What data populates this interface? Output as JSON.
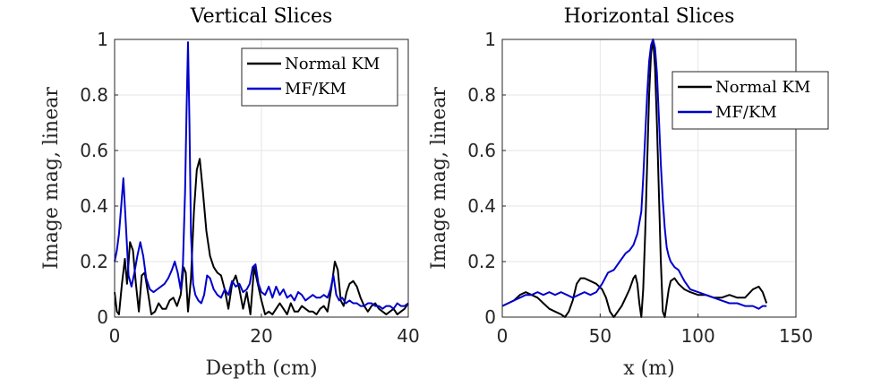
{
  "chart_data": [
    {
      "type": "line",
      "title": "Vertical Slices",
      "xlabel": "Depth (cm)",
      "ylabel": "Image mag, linear",
      "xlim": [
        0,
        40
      ],
      "ylim": [
        0,
        1
      ],
      "xticks": [
        0,
        20,
        40
      ],
      "yticks": [
        0,
        0.2,
        0.4,
        0.6,
        0.8,
        1
      ],
      "ytick_labels": [
        "0",
        "0.2",
        "0.4",
        "0.6",
        "0.8",
        "1"
      ],
      "grid": true,
      "legend_position": "top-right",
      "series": [
        {
          "name": "Normal KM",
          "color": "#000000",
          "x": [
            0,
            0.3,
            0.6,
            1,
            1.4,
            1.7,
            2.1,
            2.5,
            2.9,
            3.3,
            3.7,
            4.1,
            4.6,
            5,
            5.5,
            6,
            6.5,
            7,
            7.5,
            8,
            8.5,
            9,
            9.4,
            9.7,
            10,
            10.4,
            10.8,
            11.2,
            11.6,
            12,
            12.5,
            13,
            13.5,
            14,
            14.5,
            15,
            15.5,
            16,
            16.5,
            17,
            17.5,
            18,
            18.5,
            19,
            19.5,
            20,
            20.5,
            21,
            21.5,
            22,
            22.5,
            23,
            23.5,
            24,
            24.5,
            25,
            25.5,
            26,
            26.5,
            27,
            27.5,
            28,
            28.5,
            29,
            29.5,
            30,
            30.4,
            30.8,
            31.2,
            31.6,
            32,
            32.5,
            33,
            33.5,
            34,
            34.5,
            35,
            35.5,
            36,
            36.5,
            37,
            37.5,
            38,
            38.5,
            39,
            39.5,
            40
          ],
          "y": [
            0.09,
            0.02,
            0.01,
            0.12,
            0.21,
            0.12,
            0.27,
            0.24,
            0.12,
            0.02,
            0.15,
            0.16,
            0.08,
            0.01,
            0.02,
            0.05,
            0.03,
            0.03,
            0.06,
            0.07,
            0.04,
            0.08,
            0.18,
            0.16,
            0.02,
            0.14,
            0.38,
            0.53,
            0.57,
            0.46,
            0.31,
            0.22,
            0.18,
            0.16,
            0.15,
            0.1,
            0.03,
            0.12,
            0.15,
            0.1,
            0.03,
            0.09,
            0.01,
            0.18,
            0.12,
            0.06,
            0.01,
            0.02,
            0.01,
            0.03,
            0.05,
            0.03,
            0.01,
            0.05,
            0.02,
            0.02,
            0.04,
            0.03,
            0.02,
            0.02,
            0.01,
            0.03,
            0.04,
            0.02,
            0.1,
            0.2,
            0.17,
            0.06,
            0.04,
            0.09,
            0.12,
            0.13,
            0.11,
            0.07,
            0.04,
            0.02,
            0.04,
            0.05,
            0.03,
            0.02,
            0.01,
            0.02,
            0.03,
            0.01,
            0.02,
            0.03,
            0.05
          ]
        },
        {
          "name": "MF/KM",
          "color": "#0000cc",
          "x": [
            0,
            0.3,
            0.6,
            0.9,
            1.2,
            1.5,
            1.9,
            2.3,
            2.7,
            3.1,
            3.5,
            3.9,
            4.3,
            4.8,
            5.3,
            5.8,
            6.3,
            6.8,
            7.3,
            7.8,
            8.2,
            8.6,
            9,
            9.3,
            9.6,
            9.8,
            10,
            10.2,
            10.4,
            10.7,
            11,
            11.4,
            11.8,
            12.2,
            12.6,
            13,
            13.5,
            14,
            14.5,
            15,
            15.5,
            16,
            16.5,
            17,
            17.5,
            18,
            18.4,
            18.8,
            19.2,
            19.6,
            20,
            20.5,
            21,
            21.5,
            22,
            22.5,
            23,
            23.5,
            24,
            24.5,
            25,
            25.5,
            26,
            26.5,
            27,
            27.5,
            28,
            28.5,
            29,
            29.4,
            29.8,
            30.2,
            30.6,
            31,
            31.5,
            32,
            32.5,
            33,
            33.5,
            34,
            34.5,
            35,
            35.5,
            36,
            36.5,
            37,
            37.5,
            38,
            38.5,
            39,
            39.5,
            40
          ],
          "y": [
            0.2,
            0.24,
            0.3,
            0.4,
            0.5,
            0.35,
            0.15,
            0.11,
            0.16,
            0.22,
            0.27,
            0.22,
            0.14,
            0.1,
            0.09,
            0.1,
            0.11,
            0.12,
            0.14,
            0.17,
            0.2,
            0.16,
            0.1,
            0.19,
            0.45,
            0.75,
            0.99,
            0.7,
            0.3,
            0.12,
            0.08,
            0.06,
            0.05,
            0.08,
            0.15,
            0.14,
            0.1,
            0.08,
            0.07,
            0.1,
            0.08,
            0.13,
            0.11,
            0.12,
            0.09,
            0.1,
            0.12,
            0.18,
            0.19,
            0.12,
            0.09,
            0.08,
            0.11,
            0.07,
            0.11,
            0.08,
            0.1,
            0.07,
            0.08,
            0.06,
            0.09,
            0.08,
            0.06,
            0.07,
            0.08,
            0.07,
            0.07,
            0.08,
            0.07,
            0.1,
            0.15,
            0.08,
            0.06,
            0.07,
            0.05,
            0.06,
            0.05,
            0.05,
            0.04,
            0.04,
            0.05,
            0.05,
            0.04,
            0.04,
            0.03,
            0.04,
            0.04,
            0.03,
            0.05,
            0.04,
            0.04,
            0.05
          ]
        }
      ]
    },
    {
      "type": "line",
      "title": "Horizontal Slices",
      "xlabel": "x (m)",
      "ylabel": "Image mag, linear",
      "xlim": [
        0,
        150
      ],
      "ylim": [
        0,
        1
      ],
      "xticks": [
        0,
        50,
        100,
        150
      ],
      "yticks": [
        0,
        0.2,
        0.4,
        0.6,
        0.8,
        1
      ],
      "ytick_labels": [
        "0",
        "0.2",
        "0.4",
        "0.6",
        "0.8",
        "1"
      ],
      "grid": true,
      "legend_position": "top-right",
      "series": [
        {
          "name": "Normal KM",
          "color": "#000000",
          "x": [
            0,
            3,
            6,
            9,
            12,
            15,
            18,
            21,
            24,
            27,
            30,
            32,
            34,
            36,
            38,
            40,
            42,
            45,
            48,
            51,
            53,
            55,
            57,
            59,
            61,
            63,
            65,
            67,
            68,
            69,
            70,
            71,
            72,
            73,
            74,
            75,
            76,
            77,
            78,
            79,
            80,
            81,
            82,
            83,
            84,
            85,
            86,
            88,
            90,
            93,
            96,
            100,
            104,
            108,
            112,
            116,
            120,
            124,
            128,
            131,
            133,
            135
          ],
          "y": [
            0.04,
            0.05,
            0.06,
            0.08,
            0.09,
            0.08,
            0.07,
            0.05,
            0.03,
            0.02,
            0.01,
            0.0,
            0.02,
            0.06,
            0.12,
            0.14,
            0.14,
            0.13,
            0.12,
            0.1,
            0.07,
            0.02,
            0.0,
            0.02,
            0.04,
            0.07,
            0.1,
            0.14,
            0.15,
            0.12,
            0.05,
            0.0,
            0.1,
            0.3,
            0.55,
            0.8,
            0.95,
            1.0,
            0.9,
            0.7,
            0.45,
            0.2,
            0.02,
            0.0,
            0.05,
            0.1,
            0.13,
            0.14,
            0.12,
            0.1,
            0.09,
            0.08,
            0.08,
            0.07,
            0.07,
            0.08,
            0.07,
            0.07,
            0.1,
            0.11,
            0.09,
            0.05
          ]
        },
        {
          "name": "MF/KM",
          "color": "#0000cc",
          "x": [
            0,
            3,
            6,
            9,
            12,
            15,
            18,
            21,
            24,
            27,
            30,
            33,
            36,
            39,
            42,
            45,
            48,
            51,
            54,
            57,
            60,
            63,
            65,
            67,
            69,
            71,
            72,
            73,
            74,
            75,
            76,
            77,
            78,
            79,
            80,
            81,
            82,
            83,
            84,
            85,
            86,
            88,
            90,
            93,
            96,
            100,
            104,
            108,
            112,
            116,
            120,
            124,
            128,
            131,
            133,
            135
          ],
          "y": [
            0.04,
            0.05,
            0.06,
            0.07,
            0.08,
            0.08,
            0.09,
            0.08,
            0.09,
            0.08,
            0.09,
            0.08,
            0.07,
            0.08,
            0.09,
            0.08,
            0.09,
            0.12,
            0.16,
            0.17,
            0.2,
            0.23,
            0.24,
            0.26,
            0.3,
            0.38,
            0.5,
            0.65,
            0.8,
            0.92,
            0.98,
            1.0,
            0.97,
            0.88,
            0.72,
            0.55,
            0.42,
            0.32,
            0.25,
            0.22,
            0.2,
            0.18,
            0.17,
            0.13,
            0.1,
            0.09,
            0.08,
            0.07,
            0.06,
            0.05,
            0.05,
            0.04,
            0.04,
            0.03,
            0.04,
            0.04
          ]
        }
      ]
    }
  ]
}
